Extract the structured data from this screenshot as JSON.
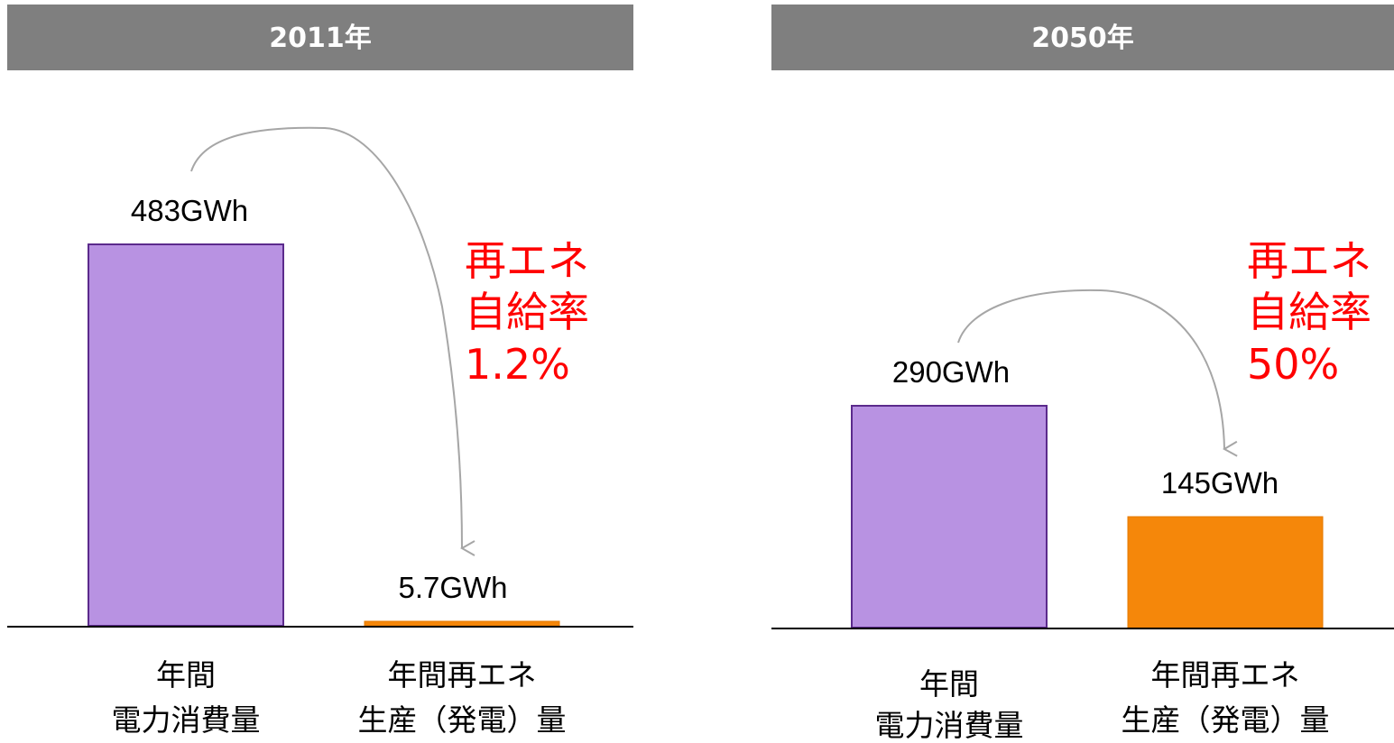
{
  "colors": {
    "header_bg": "#7f7f7f",
    "header_text": "#ffffff",
    "consumption_bar": "#b892e2",
    "consumption_bar_border": "#5b2a8c",
    "generation_bar": "#f5870a",
    "generation_bar_border": "#e57a00",
    "baseline": "#000000",
    "arrow": "#a6a6a6",
    "rate_text": "#ff0000"
  },
  "chart_data": [
    {
      "type": "bar",
      "title": "2011年",
      "categories": [
        [
          "年間",
          "電力消費量"
        ],
        [
          "年間再エネ",
          "生産（発電）量"
        ]
      ],
      "values": [
        483,
        5.7
      ],
      "value_labels": [
        "483GWh",
        "5.7GWh"
      ],
      "unit": "GWh",
      "annotation": [
        "再エネ",
        "自給率",
        "1.2%"
      ],
      "self_sufficiency_rate_percent": 1.2,
      "grid": false
    },
    {
      "type": "bar",
      "title": "2050年",
      "categories": [
        [
          "年間",
          "電力消費量"
        ],
        [
          "年間再エネ",
          "生産（発電）量"
        ]
      ],
      "values": [
        290,
        145
      ],
      "value_labels": [
        "290GWh",
        "145GWh"
      ],
      "unit": "GWh",
      "annotation": [
        "再エネ",
        "自給率",
        "50%"
      ],
      "self_sufficiency_rate_percent": 50,
      "grid": false
    }
  ]
}
